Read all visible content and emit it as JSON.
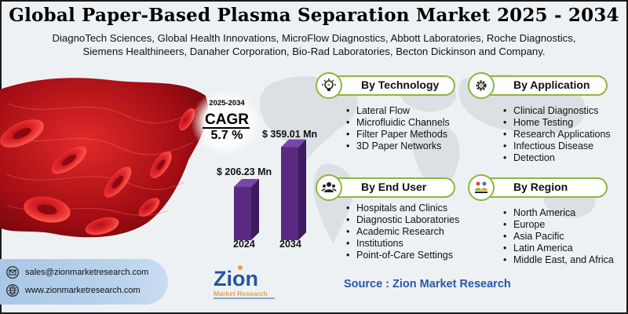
{
  "header": {
    "title": "Global Paper-Based Plasma Separation Market 2025 - 2034",
    "companies_line1": "DiagnoTech Sciences, Global Health Innovations, MicroFlow Diagnostics, Abbott Laboratories, Roche Diagnostics,",
    "companies_line2": "Siemens Healthineers, Danaher Corporation, Bio-Rad Laboratories, Becton Dickinson and Company."
  },
  "cagr": {
    "years": "2025-2034",
    "label": "CAGR",
    "value": "5.7 %"
  },
  "market": {
    "value_2024": "$ 206.23 Mn",
    "value_2034": "$ 359.01 Mn",
    "year_2024": "2024",
    "year_2034": "2034",
    "bar_2024": 206.23,
    "bar_2034": 359.01
  },
  "segments": {
    "technology": {
      "title": "By Technology",
      "icon": "gear-bulb-icon",
      "items": [
        "Lateral Flow",
        "Microfluidic Channels",
        "Filter Paper Methods",
        "3D Paper Networks"
      ]
    },
    "application": {
      "title": "By Application",
      "icon": "gear-icon",
      "items": [
        "Clinical Diagnostics",
        "Home Testing",
        "Research Applications",
        "Infectious Disease",
        "Detection"
      ]
    },
    "end_user": {
      "title": "By End User",
      "icon": "users-icon",
      "items": [
        "Hospitals and Clinics",
        "Diagnostic Laboratories",
        "Academic Research",
        "Institutions",
        "Point-of-Care Settings"
      ]
    },
    "region": {
      "title": "By Region",
      "icon": "region-people-icon",
      "items": [
        "North America",
        "Europe",
        "Asia Pacific",
        "Latin America",
        "Middle East, and Africa"
      ]
    }
  },
  "contact": {
    "email": "sales@zionmarketresearch.com",
    "website": "www.zionmarketresearch.com"
  },
  "logo": {
    "name": "Zion",
    "sub": "Market Research"
  },
  "source": "Source : Zion Market Research",
  "colors": {
    "accent_green": "#8eb63b",
    "bar_purple": "#5a2a82",
    "source_blue": "#2458a6",
    "contact_blue": "#b9d3ec"
  }
}
